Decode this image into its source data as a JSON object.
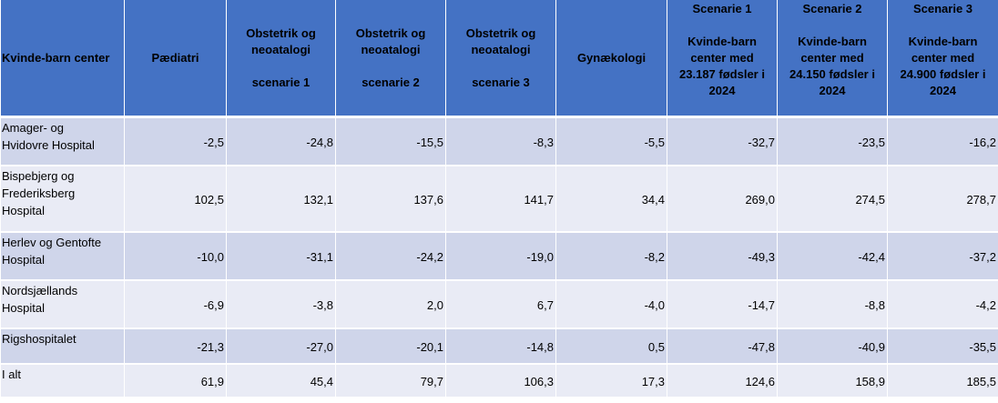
{
  "table": {
    "headers": {
      "kvinde_barn_center": "Kvinde-barn center",
      "paediatri": "Pædiatri",
      "obstetrik_1": {
        "line1": "Obstetrik og",
        "line2": "neoatalogi",
        "line3": "scenarie 1"
      },
      "obstetrik_2": {
        "line1": "Obstetrik og",
        "line2": "neoatalogi",
        "line3": "scenarie 2"
      },
      "obstetrik_3": {
        "line1": "Obstetrik og",
        "line2": "neoatalogi",
        "line3": "scenarie 3"
      },
      "gynaekologi": "Gynækologi",
      "scenarie_1": {
        "title": "Scenarie 1",
        "line1": "Kvinde-barn",
        "line2": "center med",
        "line3": "23.187 fødsler i",
        "line4": "2024"
      },
      "scenarie_2": {
        "title": "Scenarie 2",
        "line1": "Kvinde-barn",
        "line2": "center med",
        "line3": "24.150 fødsler i",
        "line4": "2024"
      },
      "scenarie_3": {
        "title": "Scenarie 3",
        "line1": "Kvinde-barn",
        "line2": "center med",
        "line3": "24.900 fødsler i",
        "line4": "2024"
      }
    },
    "rows": [
      {
        "label": [
          "Amager- og",
          "Hvidovre Hospital"
        ],
        "values": [
          "-2,5",
          "-24,8",
          "-15,5",
          "-8,3",
          "-5,5",
          "-32,7",
          "-23,5",
          "-16,2"
        ]
      },
      {
        "label": [
          "Bispebjerg og",
          "Frederiksberg",
          "Hospital"
        ],
        "values": [
          "102,5",
          "132,1",
          "137,6",
          "141,7",
          "34,4",
          "269,0",
          "274,5",
          "278,7"
        ]
      },
      {
        "label": [
          "Herlev og Gentofte",
          "Hospital"
        ],
        "values": [
          "-10,0",
          "-31,1",
          "-24,2",
          "-19,0",
          "-8,2",
          "-49,3",
          "-42,4",
          "-37,2"
        ]
      },
      {
        "label": [
          "Nordsjællands",
          "Hospital"
        ],
        "values": [
          "-6,9",
          "-3,8",
          "2,0",
          "6,7",
          "-4,0",
          "-14,7",
          "-8,8",
          "-4,2"
        ]
      },
      {
        "label": [
          "Rigshospitalet"
        ],
        "values": [
          "-21,3",
          "-27,0",
          "-20,1",
          "-14,8",
          "0,5",
          "-47,8",
          "-40,9",
          "-35,5"
        ]
      },
      {
        "label": [
          "I alt"
        ],
        "values": [
          "61,9",
          "45,4",
          "79,7",
          "106,3",
          "17,3",
          "124,6",
          "158,9",
          "185,5"
        ]
      }
    ]
  },
  "colors": {
    "header_bg": "#4472c4",
    "row_dark": "#cfd5ea",
    "row_light": "#e9ebf5"
  }
}
